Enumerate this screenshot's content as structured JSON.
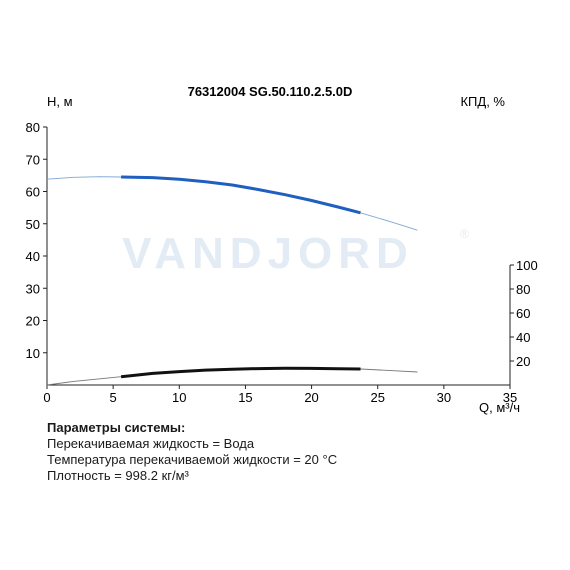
{
  "chart_data": {
    "type": "line",
    "title": "76312004 SG.50.110.2.5.0D",
    "ylabel_left": "H, м",
    "ylabel_right": "КПД, %",
    "xlabel": "Q, м³/ч",
    "watermark": "VANDJORD",
    "watermark_mark": "®",
    "xlim": [
      0,
      35
    ],
    "ylim_left": [
      0,
      80
    ],
    "ylim_right": [
      0,
      100
    ],
    "x_ticks": [
      0,
      5,
      10,
      15,
      20,
      25,
      30,
      35
    ],
    "y_ticks_left": [
      10,
      20,
      30,
      40,
      50,
      60,
      70,
      80
    ],
    "y_ticks_right": [
      20,
      40,
      60,
      80,
      100
    ],
    "colors": {
      "head": "#1f5fbf",
      "efficiency": "#111111",
      "extension": "#8fa0b5"
    },
    "series": [
      {
        "key": "head",
        "axis": "left",
        "x": [
          0,
          2,
          4,
          5.6,
          8,
          10,
          12,
          14,
          16,
          18,
          20,
          22,
          23.7,
          26,
          28
        ],
        "values": [
          63.8,
          64.4,
          64.6,
          64.5,
          64.3,
          63.8,
          63.0,
          62.0,
          60.6,
          59.0,
          57.2,
          55.2,
          53.4,
          50.6,
          48.0
        ],
        "bold_range": [
          5.6,
          23.7
        ]
      },
      {
        "key": "efficiency",
        "axis": "right",
        "x": [
          0,
          2,
          4,
          5.6,
          8,
          10,
          12,
          14,
          16,
          18,
          20,
          22,
          23.7,
          26,
          28
        ],
        "values": [
          0,
          3.0,
          5.2,
          6.9,
          9.7,
          11.2,
          12.4,
          13.2,
          13.7,
          13.9,
          13.8,
          13.6,
          13.3,
          12.0,
          10.8
        ],
        "bold_range": [
          5.6,
          23.7
        ]
      }
    ]
  },
  "system_params": {
    "heading": "Параметры системы:",
    "fluid": "Перекачиваемая жидкость = Вода",
    "temperature": "Температура перекачиваемой жидкости = 20 °C",
    "density": "Плотность = 998.2 кг/м³"
  }
}
